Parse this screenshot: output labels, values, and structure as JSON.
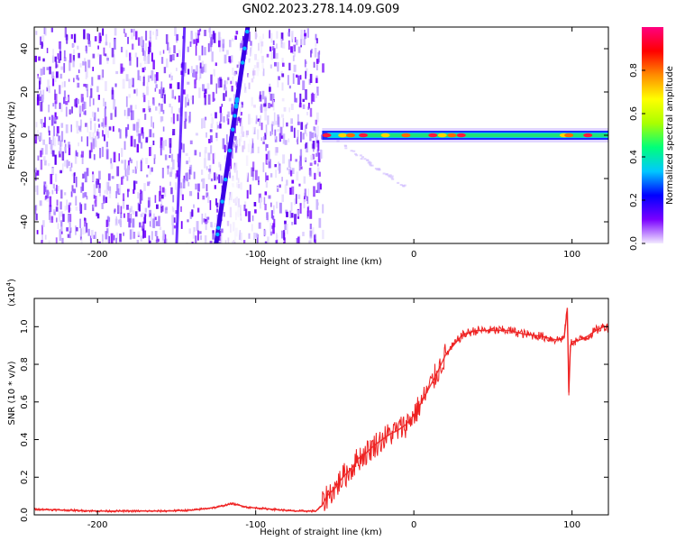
{
  "chart_data": [
    {
      "type": "heatmap",
      "title": "GN02.2023.278.14.09.G09",
      "xlabel": "Height of straight line (km)",
      "ylabel": "Frequency (Hz)",
      "xlim": [
        -240,
        123
      ],
      "ylim": [
        -50,
        50
      ],
      "xticks": [
        -200,
        -100,
        0,
        100
      ],
      "yticks": [
        -40,
        -20,
        0,
        20,
        40
      ],
      "colorbar": {
        "label": "Normalized spectral amplitude",
        "range": [
          0,
          1
        ],
        "ticks": [
          "0.0",
          "0.2",
          "0.4",
          "0.6",
          "0.8"
        ],
        "tick_values": [
          0.0,
          0.2,
          0.4,
          0.6,
          0.8
        ],
        "colors": [
          "#f2eaff",
          "#7a00ff",
          "#0000ff",
          "#00c8ff",
          "#00ff7a",
          "#aaff00",
          "#ffff00",
          "#ff8c00",
          "#ff0000",
          "#ff0080"
        ]
      },
      "features": {
        "noise_region_end_km": -58,
        "diagonal_track": {
          "start": [
            -125,
            -50
          ],
          "end": [
            -105,
            50
          ]
        },
        "side_track": {
          "start": [
            -150,
            -50
          ],
          "end": [
            -145,
            50
          ]
        },
        "main_line_freq_hz": 0,
        "main_line_start_km": -58,
        "hotspots_km": [
          -55,
          -45,
          -40,
          -32,
          -18,
          -5,
          12,
          18,
          24,
          30,
          95,
          98,
          110
        ]
      }
    },
    {
      "type": "line",
      "title": "",
      "xlabel": "Height of straight line (km)",
      "ylabel": "SNR (10 * v/v)",
      "scale_label": "(x10",
      "scale_exp": "4",
      "scale_suffix": ")",
      "xlim": [
        -240,
        123
      ],
      "ylim": [
        0,
        1.15
      ],
      "xticks": [
        -200,
        -100,
        0,
        100
      ],
      "yticks": [
        "0.0",
        "0.2",
        "0.4",
        "0.6",
        "0.8",
        "1.0"
      ],
      "ytick_values": [
        0.0,
        0.2,
        0.4,
        0.6,
        0.8,
        1.0
      ],
      "series": [
        {
          "name": "SNR",
          "color": "#ee2222",
          "x": [
            -240,
            -220,
            -200,
            -180,
            -160,
            -140,
            -125,
            -115,
            -105,
            -90,
            -75,
            -62,
            -58,
            -55,
            -50,
            -45,
            -40,
            -35,
            -30,
            -25,
            -20,
            -15,
            -10,
            -5,
            0,
            5,
            10,
            15,
            20,
            25,
            30,
            35,
            40,
            50,
            60,
            70,
            80,
            90,
            95,
            97,
            98,
            99,
            100,
            105,
            110,
            115,
            120,
            123
          ],
          "values": [
            0.03,
            0.025,
            0.02,
            0.02,
            0.02,
            0.025,
            0.04,
            0.06,
            0.04,
            0.03,
            0.02,
            0.02,
            0.05,
            0.1,
            0.14,
            0.2,
            0.24,
            0.3,
            0.33,
            0.37,
            0.4,
            0.43,
            0.45,
            0.48,
            0.53,
            0.6,
            0.68,
            0.76,
            0.85,
            0.9,
            0.95,
            0.97,
            0.98,
            0.98,
            0.98,
            0.96,
            0.95,
            0.93,
            0.94,
            1.1,
            0.65,
            0.9,
            0.92,
            0.93,
            0.95,
            0.98,
            1.0,
            1.0
          ]
        }
      ]
    }
  ]
}
